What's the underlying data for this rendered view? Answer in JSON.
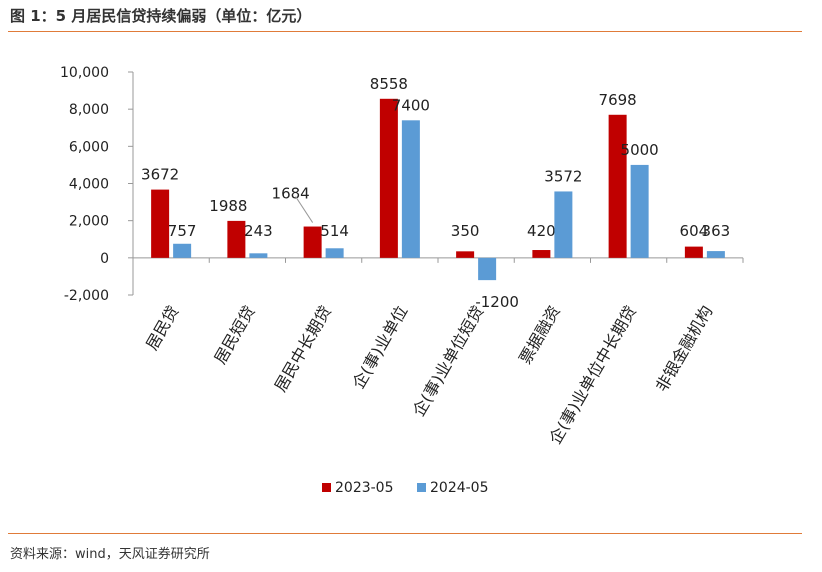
{
  "figure": {
    "title": "图 1：5 月居民信贷持续偏弱（单位：亿元）",
    "source": "资料来源：wind，天风证券研究所"
  },
  "colors": {
    "series1": "#c00000",
    "series2": "#5b9bd5",
    "rule": "#e07b39",
    "axis": "#999999"
  },
  "chart_data": {
    "type": "bar",
    "title": "5 月居民信贷持续偏弱",
    "ylabel": "亿元",
    "xlabel": "",
    "ylim": [
      -2000,
      10000
    ],
    "yticks": [
      10000,
      8000,
      6000,
      4000,
      2000,
      0,
      -2000
    ],
    "ytick_labels": [
      "10,000",
      "8,000",
      "6,000",
      "4,000",
      "2,000",
      "0",
      "-2,000"
    ],
    "grid": false,
    "legend": "bottom",
    "categories": [
      "居民贷",
      "居民短贷",
      "居民中长期贷",
      "企(事)业单位",
      "企(事)业单位短贷",
      "票据融资",
      "企(事)业单位中长期贷",
      "非银金融机构"
    ],
    "series": [
      {
        "name": "2023-05",
        "values": [
          3672,
          1988,
          1684,
          8558,
          350,
          420,
          7698,
          604
        ]
      },
      {
        "name": "2024-05",
        "values": [
          757,
          243,
          514,
          7400,
          -1200,
          3572,
          5000,
          363
        ]
      }
    ],
    "data_labels": [
      [
        "3672",
        "1988",
        "1684",
        "8558",
        "350",
        "420",
        "7698",
        "604"
      ],
      [
        "757",
        "243",
        "514",
        "7400",
        "-1200",
        "3572",
        "5000",
        "363"
      ]
    ]
  }
}
